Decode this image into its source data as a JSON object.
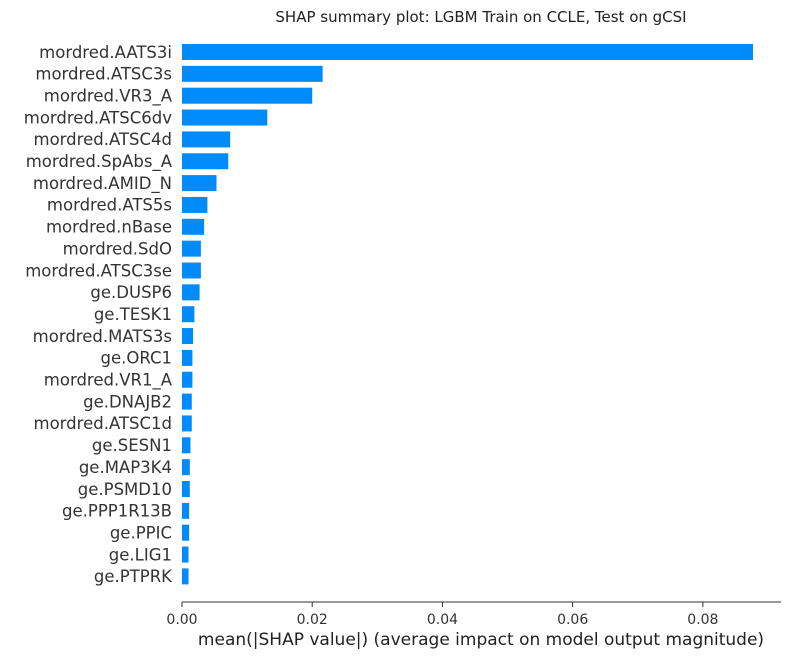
{
  "chart_data": {
    "type": "bar",
    "orientation": "horizontal",
    "title": "SHAP summary plot: LGBM Train on CCLE, Test on gCSI",
    "xlabel": "mean(|SHAP value|) (average impact on model output magnitude)",
    "ylabel": "",
    "xlim": [
      0,
      0.092
    ],
    "xticks": [
      0.0,
      0.02,
      0.04,
      0.06,
      0.08
    ],
    "xtick_labels": [
      "0.00",
      "0.02",
      "0.04",
      "0.06",
      "0.08"
    ],
    "bar_color": "#008bfb",
    "grid": false,
    "legend": "none",
    "categories": [
      "mordred.AATS3i",
      "mordred.ATSC3s",
      "mordred.VR3_A",
      "mordred.ATSC6dv",
      "mordred.ATSC4d",
      "mordred.SpAbs_A",
      "mordred.AMID_N",
      "mordred.ATS5s",
      "mordred.nBase",
      "mordred.SdO",
      "mordred.ATSC3se",
      "ge.DUSP6",
      "ge.TESK1",
      "mordred.MATS3s",
      "ge.ORC1",
      "mordred.VR1_A",
      "ge.DNAJB2",
      "mordred.ATSC1d",
      "ge.SESN1",
      "ge.MAP3K4",
      "ge.PSMD10",
      "ge.PPP1R13B",
      "ge.PPIC",
      "ge.LIG1",
      "ge.PTPRK"
    ],
    "values": [
      0.0877,
      0.0216,
      0.02,
      0.0131,
      0.0074,
      0.0071,
      0.0053,
      0.0039,
      0.0034,
      0.0029,
      0.0029,
      0.0027,
      0.0019,
      0.0017,
      0.0016,
      0.0016,
      0.0015,
      0.0015,
      0.0013,
      0.0012,
      0.0012,
      0.0011,
      0.0011,
      0.001,
      0.001
    ]
  }
}
